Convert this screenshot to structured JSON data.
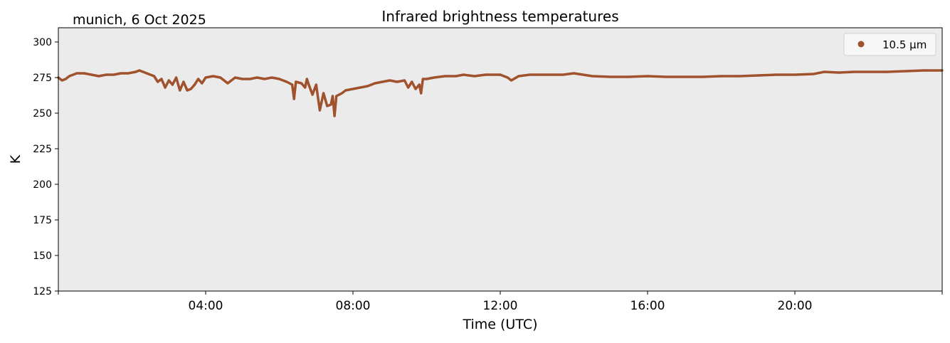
{
  "chart_data": {
    "type": "line",
    "title": "Infrared brightness temperatures",
    "subtitle": "munich, 6 Oct 2025",
    "xlabel": "Time (UTC)",
    "ylabel": "K",
    "xlim_hours": [
      0,
      24
    ],
    "ylim": [
      125,
      310
    ],
    "yticks": [
      125,
      150,
      175,
      200,
      225,
      250,
      275,
      300
    ],
    "xticks": [
      {
        "h": 4,
        "label": "04:00"
      },
      {
        "h": 8,
        "label": "08:00"
      },
      {
        "h": 12,
        "label": "12:00"
      },
      {
        "h": 16,
        "label": "16:00"
      },
      {
        "h": 20,
        "label": "20:00"
      }
    ],
    "grid": false,
    "legend_position": "top-right",
    "background": "#ebebeb",
    "series": [
      {
        "name": "10.5 µm",
        "color": "#a0522d",
        "x": [
          0,
          0.1,
          0.2,
          0.3,
          0.5,
          0.7,
          0.9,
          1.1,
          1.3,
          1.5,
          1.7,
          1.9,
          2.1,
          2.2,
          2.4,
          2.6,
          2.7,
          2.8,
          2.9,
          3.0,
          3.1,
          3.2,
          3.3,
          3.4,
          3.5,
          3.6,
          3.7,
          3.8,
          3.9,
          4.0,
          4.2,
          4.4,
          4.6,
          4.8,
          5.0,
          5.2,
          5.4,
          5.6,
          5.8,
          6.0,
          6.2,
          6.35,
          6.4,
          6.45,
          6.6,
          6.7,
          6.75,
          6.8,
          6.9,
          7.0,
          7.1,
          7.2,
          7.3,
          7.4,
          7.45,
          7.5,
          7.55,
          7.7,
          7.8,
          8.0,
          8.2,
          8.4,
          8.6,
          8.8,
          9.0,
          9.2,
          9.4,
          9.5,
          9.6,
          9.7,
          9.8,
          9.85,
          9.9,
          10.0,
          10.2,
          10.5,
          10.8,
          11.0,
          11.3,
          11.6,
          11.8,
          12.0,
          12.2,
          12.3,
          12.5,
          12.8,
          13.0,
          13.3,
          13.7,
          14.0,
          14.5,
          15.0,
          15.5,
          16.0,
          16.5,
          17.0,
          17.5,
          18.0,
          18.5,
          19.0,
          19.5,
          20.0,
          20.5,
          20.8,
          21.2,
          21.6,
          22.0,
          22.5,
          23.0,
          23.5,
          24.0
        ],
        "y": [
          275,
          273,
          274,
          276,
          278,
          278,
          277,
          276,
          277,
          277,
          278,
          278,
          279,
          280,
          278,
          276,
          272,
          274,
          268,
          273,
          270,
          275,
          266,
          272,
          266,
          267,
          270,
          274,
          271,
          275,
          276,
          275,
          271,
          275,
          274,
          274,
          275,
          274,
          275,
          274,
          272,
          270,
          260,
          272,
          271,
          268,
          274,
          270,
          263,
          270,
          252,
          264,
          255,
          256,
          262,
          248,
          262,
          264,
          266,
          267,
          268,
          269,
          271,
          272,
          273,
          272,
          273,
          268,
          272,
          267,
          270,
          264,
          274,
          274,
          275,
          276,
          276,
          277,
          276,
          277,
          277,
          277,
          275,
          273,
          276,
          277,
          277,
          277,
          277,
          278,
          276,
          275.5,
          275.5,
          276,
          275.5,
          275.5,
          275.5,
          276,
          276,
          276.5,
          277,
          277,
          277.5,
          279,
          278.5,
          279,
          279,
          279,
          279.5,
          280,
          280
        ]
      }
    ]
  }
}
